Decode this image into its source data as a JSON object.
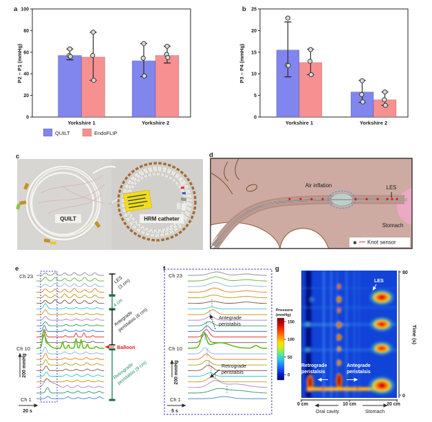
{
  "figure": {
    "panels": {
      "a": {
        "label": "a"
      },
      "b": {
        "label": "b"
      },
      "c": {
        "label": "c",
        "device_left": "QUILT",
        "device_right": "HRM catheter"
      },
      "d": {
        "label": "d",
        "air_inflation": "Air inflation",
        "les": "LES",
        "stomach": "Stomach",
        "legend_knot": "Knot sensor"
      },
      "e": {
        "label": "e",
        "ch_top": "Ch 23",
        "ch_mid": "Ch 10",
        "ch_bottom": "Ch 1",
        "scale_v": "200 mmHg",
        "scale_h": "20 s",
        "region_les_1": "LES",
        "region_les_2": "(3 cm)",
        "region_4cm": "4 cm",
        "region_ante_1": "Antegrade",
        "region_ante_2": "peristalsis (6 cm)",
        "balloon": "Balloon",
        "region_retro_1": "Retrograde",
        "region_retro_2": "peristalsis (9 cm)"
      },
      "f": {
        "label": "f",
        "ch_top": "Ch 23",
        "ch_mid": "Ch 10",
        "ch_bottom": "Ch 1",
        "scale_v": "200 mmHg",
        "scale_h": "5 s",
        "ante_1": "Antegrade",
        "ante_2": "peristalsis",
        "retro_1": "Retrograde",
        "retro_2": "peristalsis"
      },
      "g": {
        "label": "g",
        "colorbar_1": "Pressure",
        "colorbar_2": "(mmHg)",
        "colorbar_ticks": [
          "150",
          "100",
          "50",
          "0"
        ],
        "time_label": "Time (s)",
        "time_tick_top": "80",
        "time_tick_bottom": "0",
        "x_ticks": [
          "0 cm",
          "10 cm",
          "20 cm"
        ],
        "dir_left": "Oral cavity",
        "dir_right": "Stomach",
        "ann_les": "LES",
        "ann_retro_1": "Retrograde",
        "ann_retro_2": "peristalsis",
        "ann_ante_1": "Antegrade",
        "ann_ante_2": "peristalsis"
      }
    }
  },
  "chart_data": [
    {
      "id": "a",
      "type": "bar",
      "categories": [
        "Yorkshire 1",
        "Yorkshire 2"
      ],
      "ylabel": "P2 – P1 (mmHg)",
      "ylim": [
        0,
        100
      ],
      "yticks": [
        "0",
        "20",
        "40",
        "60",
        "80",
        "100"
      ],
      "legend_position": "below-left",
      "series": [
        {
          "name": "QUILT",
          "color": "#8185ee",
          "values": [
            57,
            52
          ],
          "whiskers": [
            [
              53,
              63
            ],
            [
              37.5,
              68
            ]
          ],
          "points": [
            [
              63,
              57,
              56
            ],
            [
              68,
              54.5,
              38
            ]
          ]
        },
        {
          "name": "EndoFLIP",
          "color": "#f79090",
          "values": [
            55.5,
            57
          ],
          "whiskers": [
            [
              34,
              78.5
            ],
            [
              50,
              65.5
            ]
          ],
          "points": [
            [
              78.5,
              57,
              34
            ],
            [
              65.5,
              58,
              55
            ]
          ]
        }
      ]
    },
    {
      "id": "b",
      "type": "bar",
      "categories": [
        "Yorkshire 1",
        "Yorkshire 2"
      ],
      "ylabel": "P3 – P4 (mmHg)",
      "ylim": [
        0,
        25
      ],
      "yticks": [
        "0",
        "5",
        "10",
        "15",
        "20",
        "25"
      ],
      "series": [
        {
          "name": "QUILT",
          "color": "#8185ee",
          "values": [
            15.5,
            5.8
          ],
          "whiskers": [
            [
              9.3,
              22
            ],
            [
              3.4,
              8.5
            ]
          ],
          "points": [
            [
              22.9,
              12,
              11.9
            ],
            [
              8.4,
              5.2,
              3.5
            ]
          ]
        },
        {
          "name": "EndoFLIP",
          "color": "#f79090",
          "values": [
            12.6,
            4.0
          ],
          "whiskers": [
            [
              9.8,
              15.7
            ],
            [
              2.7,
              5.8
            ]
          ],
          "points": [
            [
              15.6,
              12.9,
              9.8
            ],
            [
              5.8,
              4.0,
              2.7
            ]
          ]
        }
      ]
    },
    {
      "id": "e",
      "type": "line",
      "description": "23-channel intraluminal pressure traces during balloon distension",
      "n_channels": 23,
      "channel_top": "Ch 23",
      "channel_mid": "Ch 10",
      "channel_bottom": "Ch 1",
      "scale_bar": {
        "y": "200 mmHg",
        "x": "20 s"
      },
      "segments": [
        {
          "label": "LES (3 cm)"
        },
        {
          "label": "4 cm"
        },
        {
          "label": "Antegrade peristalsis (6 cm)"
        },
        {
          "label": "Balloon"
        },
        {
          "label": "Retrograde peristalsis (9 cm)"
        }
      ]
    },
    {
      "id": "f",
      "type": "line",
      "description": "Zoomed 23-channel traces of a single distension response",
      "n_channels": 23,
      "channel_top": "Ch 23",
      "channel_mid": "Ch 10",
      "channel_bottom": "Ch 1",
      "scale_bar": {
        "y": "200 mmHg",
        "x": "5 s"
      },
      "annotations": [
        "Antegrade peristalsis",
        "Retrograde peristalsis"
      ]
    },
    {
      "id": "g",
      "type": "heatmap",
      "x_range_cm": [
        0,
        20
      ],
      "time_range_s": [
        0,
        80
      ],
      "x_tick_labels": [
        "0 cm",
        "10 cm",
        "20 cm"
      ],
      "time_tick_labels": [
        0,
        80
      ],
      "colorbar": {
        "label": "Pressure (mmHg)",
        "ticks": [
          150,
          100,
          50,
          0
        ]
      },
      "direction_labels": {
        "left": "Oral cavity",
        "right": "Stomach"
      },
      "annotations": [
        "LES",
        "Retrograde peristalsis",
        "Antegrade peristalsis"
      ],
      "features": [
        {
          "name": "LES contractions",
          "x_cm": 16.8,
          "times_s": [
            8,
            31,
            46,
            63
          ]
        },
        {
          "name": "balloon pressure column",
          "x_cm": 8,
          "times_s": [
            12,
            22,
            31,
            38,
            46,
            55,
            62,
            70
          ]
        },
        {
          "name": "baseline high-pressure band",
          "time_s": 5,
          "x_span_cm": [
            1.5,
            15.5
          ]
        },
        {
          "name": "retrograde origin",
          "x_cm": 2,
          "time_s": 8
        },
        {
          "name": "antegrade origin",
          "x_cm": 8,
          "time_s": 7
        },
        {
          "name": "dark low-pressure band",
          "x_cm": 1.7
        }
      ]
    }
  ],
  "colors": {
    "quilt": "#8185ee",
    "endoflip": "#f79090",
    "heatmap_base": "#1243d8",
    "dashed_box": "#5b57c9",
    "balloon_red": "#e02020",
    "region_green": "#1f8f66",
    "trace_cycle": [
      "#8c8c8c",
      "#6cb33f",
      "#8ab4e8",
      "#f57e20",
      "#a8a21f",
      "#7a5148",
      "#35c4cc",
      "#c9991a",
      "#b083d6",
      "#2f9e68",
      "#3a6fd8",
      "#e03535",
      "#5e5e5e",
      "#66bb1e",
      "#8ab4e8",
      "#f57e20",
      "#a8a21f",
      "#8a5a50",
      "#35c4cc",
      "#c9991a",
      "#b083d6",
      "#2f9e68",
      "#4a86d8"
    ]
  }
}
